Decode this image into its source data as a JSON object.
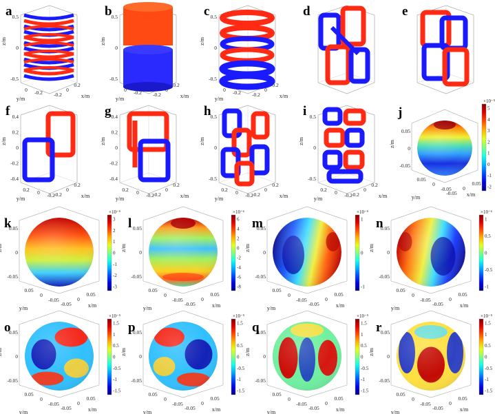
{
  "coil_panels": [
    {
      "id": "a",
      "label": "a",
      "zticks": [
        "0.5",
        "0",
        "-0.5"
      ],
      "yticks": [
        "0",
        "-0.2"
      ],
      "xticks": [
        "-0.2",
        "0",
        "0.2"
      ],
      "ylab": "y/m",
      "xlab": "x/m",
      "zlab": "z/m",
      "ticks_hidden": false
    },
    {
      "id": "b",
      "label": "b",
      "zticks": [
        "0.5",
        "0",
        "-0.5"
      ],
      "yticks": [
        "0",
        "-0.2"
      ],
      "xticks": [
        "-0.2",
        "0",
        "0.2"
      ],
      "ylab": "y/m",
      "xlab": "x/m",
      "zlab": "z/m",
      "ticks_hidden": false
    },
    {
      "id": "c",
      "label": "c",
      "zticks": [
        "0.5",
        "0",
        "-0.5"
      ],
      "yticks": [
        "0",
        "-0.2"
      ],
      "xticks": [
        "-0.2",
        "0",
        "0.2"
      ],
      "ylab": "y/m",
      "xlab": "x/m",
      "zlab": "z/m",
      "ticks_hidden": false
    },
    {
      "id": "d",
      "label": "d",
      "zticks": [],
      "yticks": [],
      "xticks": [],
      "ylab": "",
      "xlab": "",
      "zlab": "",
      "ticks_hidden": true
    },
    {
      "id": "e",
      "label": "e",
      "zticks": [],
      "yticks": [],
      "xticks": [],
      "ylab": "",
      "xlab": "",
      "zlab": "",
      "ticks_hidden": true
    },
    {
      "id": "f",
      "label": "f",
      "zticks": [
        "0.4",
        "0.2",
        "0",
        "-0.2",
        "-0.4"
      ],
      "yticks": [
        "0.2",
        "0",
        "-0.2"
      ],
      "xticks": [
        "-0.2",
        "0",
        "0.2"
      ],
      "ylab": "y/m",
      "xlab": "x/m",
      "zlab": "z/m",
      "ticks_hidden": false
    },
    {
      "id": "g",
      "label": "g",
      "zticks": [
        "0.4",
        "0.2",
        "0",
        "-0.2",
        "-0.4"
      ],
      "yticks": [
        "0.2",
        "0",
        "-0.2"
      ],
      "xticks": [
        "-0.2",
        "0",
        "0.2"
      ],
      "ylab": "y/m",
      "xlab": "x/m",
      "zlab": "z/m",
      "ticks_hidden": false
    },
    {
      "id": "h",
      "label": "h",
      "zticks": [
        "0.5",
        "0",
        "-0.5"
      ],
      "yticks": [
        "0.2",
        "0",
        "-0.2"
      ],
      "xticks": [
        "-0.2",
        "0",
        "0.2"
      ],
      "ylab": "y/m",
      "xlab": "x/m",
      "zlab": "z/m",
      "ticks_hidden": false
    },
    {
      "id": "i",
      "label": "i",
      "zticks": [
        "0.5",
        "0",
        "-0.5"
      ],
      "yticks": [
        "0.2",
        "0",
        "-0.2"
      ],
      "xticks": [
        "-0.2",
        "0",
        "0.2"
      ],
      "ylab": "y/m",
      "xlab": "x/m",
      "zlab": "z/m",
      "ticks_hidden": false
    }
  ],
  "sphere_panels": [
    {
      "id": "j",
      "label": "j",
      "exp": "×10⁻⁵",
      "cbticks": [
        "5",
        "4",
        "3",
        "2",
        "1",
        "0",
        "-1",
        "-2"
      ],
      "zticks": [
        "0.05",
        "0",
        "-0.05"
      ],
      "yticks": [
        "0.05",
        "0",
        "-0.05"
      ],
      "xticks": [
        "-0.05",
        "0",
        "0.05"
      ],
      "ylab": "y/m",
      "xlab": "x/m",
      "zlab": "z/m",
      "pattern": "bands_j"
    },
    {
      "id": "k",
      "label": "k",
      "exp": "×10⁻⁶",
      "cbticks": [
        "3",
        "2",
        "1",
        "0",
        "-1",
        "-2",
        "-3"
      ],
      "zticks": [
        "0.05",
        "0",
        "-0.05"
      ],
      "yticks": [
        "0.05",
        "0",
        "-0.05"
      ],
      "xticks": [
        "-0.05",
        "0",
        "0.05"
      ],
      "ylab": "y/m",
      "xlab": "x/m",
      "zlab": "z/m",
      "pattern": "grad_k"
    },
    {
      "id": "l",
      "label": "l",
      "exp": "×10⁻⁶",
      "cbticks": [
        "6",
        "4",
        "2",
        "0",
        "-2",
        "-4",
        "-6",
        "-8"
      ],
      "zticks": [
        "0.05",
        "0",
        "-0.05"
      ],
      "yticks": [
        "0.05",
        "0",
        "-0.05"
      ],
      "xticks": [
        "-0.05",
        "0",
        "0.05"
      ],
      "ylab": "y/m",
      "xlab": "x/m",
      "zlab": "z/m",
      "pattern": "bands_l"
    },
    {
      "id": "m",
      "label": "m",
      "exp": "×10⁻⁶",
      "cbticks": [
        "1",
        "0",
        "-1"
      ],
      "zticks": [
        "0.05",
        "0",
        "-0.05"
      ],
      "yticks": [
        "0.05",
        "0",
        "-0.05"
      ],
      "xticks": [
        "-0.05",
        "0",
        "0.05"
      ],
      "ylab": "y/m",
      "xlab": "x/m",
      "zlab": "z/m",
      "pattern": "side_m"
    },
    {
      "id": "n",
      "label": "n",
      "exp": "×10⁻⁶",
      "cbticks": [
        "1",
        "0.5",
        "0",
        "-0.5",
        "-1"
      ],
      "zticks": [
        "0.05",
        "0",
        "-0.05"
      ],
      "yticks": [
        "0.05",
        "0",
        "-0.05"
      ],
      "xticks": [
        "-0.05",
        "0",
        "0.05"
      ],
      "ylab": "y/m",
      "xlab": "x/m",
      "zlab": "z/m",
      "pattern": "side_n"
    },
    {
      "id": "o",
      "label": "o",
      "exp": "×10⁻⁵",
      "cbticks": [
        "1.5",
        "1",
        "0.5",
        "0",
        "-0.5",
        "-1",
        "-1.5"
      ],
      "zticks": [
        "0.05",
        "0",
        "-0.05"
      ],
      "yticks": [
        "0.05",
        "0",
        "-0.05"
      ],
      "xticks": [
        "-0.05",
        "0",
        "0.05"
      ],
      "ylab": "y/m",
      "xlab": "x/m",
      "zlab": "z/m",
      "pattern": "blob_o"
    },
    {
      "id": "p",
      "label": "p",
      "exp": "×10⁻⁵",
      "cbticks": [
        "1.5",
        "1",
        "0.5",
        "0",
        "-0.5",
        "-1",
        "-1.5"
      ],
      "zticks": [
        "0.05",
        "0",
        "-0.05"
      ],
      "yticks": [
        "0.05",
        "0",
        "-0.05"
      ],
      "xticks": [
        "-0.05",
        "0",
        "0.05"
      ],
      "ylab": "y/m",
      "xlab": "x/m",
      "zlab": "z/m",
      "pattern": "blob_p"
    },
    {
      "id": "q",
      "label": "q",
      "exp": "×10⁻⁵",
      "cbticks": [
        "1.5",
        "1",
        "0.5",
        "0",
        "-0.5",
        "-1",
        "-1.5"
      ],
      "zticks": [
        "0.05",
        "0",
        "-0.05"
      ],
      "yticks": [
        "0.05",
        "0",
        "-0.05"
      ],
      "xticks": [
        "-0.05",
        "0",
        "0.05"
      ],
      "ylab": "y/m",
      "xlab": "x/m",
      "zlab": "z/m",
      "pattern": "lobes_q"
    },
    {
      "id": "r",
      "label": "r",
      "exp": "×10⁻⁵",
      "cbticks": [
        "1.5",
        "1",
        "0.5",
        "0",
        "-0.5",
        "-1",
        "-1.5"
      ],
      "zticks": [
        "0.05",
        "0",
        "-0.05"
      ],
      "yticks": [
        "0.05",
        "0",
        "-0.05"
      ],
      "xticks": [
        "-0.05",
        "0",
        "0.05"
      ],
      "ylab": "y/m",
      "xlab": "x/m",
      "zlab": "z/m",
      "pattern": "lobes_r"
    }
  ]
}
